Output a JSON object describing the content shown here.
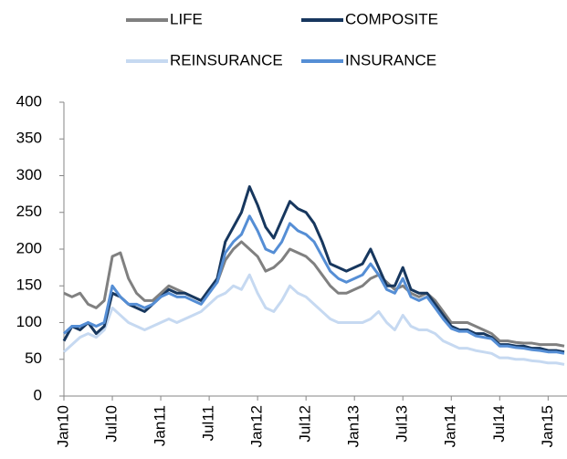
{
  "chart_data": {
    "type": "line",
    "x": [
      "Jan10",
      null,
      null,
      null,
      null,
      null,
      "Jul10",
      null,
      null,
      null,
      null,
      null,
      "Jan11",
      null,
      null,
      null,
      null,
      null,
      "Jul11",
      null,
      null,
      null,
      null,
      null,
      "Jan12",
      null,
      null,
      null,
      null,
      null,
      "Jul12",
      null,
      null,
      null,
      null,
      null,
      "Jan13",
      null,
      null,
      null,
      null,
      null,
      "Jul13",
      null,
      null,
      null,
      null,
      null,
      "Jan14",
      null,
      null,
      null,
      null,
      null,
      "Jul14",
      null,
      null,
      null,
      null,
      null,
      "Jan15",
      null,
      null
    ],
    "series": [
      {
        "name": "LIFE",
        "color": "#808080",
        "values": [
          140,
          135,
          140,
          125,
          120,
          130,
          190,
          195,
          160,
          140,
          130,
          130,
          140,
          150,
          145,
          140,
          135,
          130,
          145,
          155,
          185,
          200,
          210,
          200,
          190,
          170,
          175,
          185,
          200,
          195,
          190,
          180,
          165,
          150,
          140,
          140,
          145,
          150,
          160,
          165,
          155,
          145,
          150,
          140,
          135,
          140,
          130,
          115,
          100,
          100,
          100,
          95,
          90,
          85,
          75,
          75,
          73,
          72,
          72,
          70,
          70,
          70,
          68
        ]
      },
      {
        "name": "COMPOSITE",
        "color": "#17375e",
        "values": [
          75,
          95,
          90,
          100,
          85,
          95,
          140,
          135,
          125,
          120,
          115,
          125,
          135,
          145,
          140,
          140,
          135,
          130,
          145,
          160,
          210,
          230,
          250,
          285,
          260,
          230,
          215,
          240,
          265,
          255,
          250,
          235,
          210,
          180,
          175,
          170,
          175,
          180,
          200,
          175,
          150,
          150,
          175,
          145,
          140,
          140,
          125,
          110,
          95,
          90,
          90,
          85,
          85,
          80,
          70,
          70,
          68,
          68,
          65,
          65,
          62,
          62,
          60
        ]
      },
      {
        "name": "REINSURANCE",
        "color": "#c6d9f1",
        "values": [
          60,
          70,
          80,
          85,
          80,
          90,
          120,
          110,
          100,
          95,
          90,
          95,
          100,
          105,
          100,
          105,
          110,
          115,
          125,
          135,
          140,
          150,
          145,
          165,
          140,
          120,
          115,
          130,
          150,
          140,
          135,
          125,
          115,
          105,
          100,
          100,
          100,
          100,
          105,
          115,
          100,
          90,
          110,
          95,
          90,
          90,
          85,
          75,
          70,
          65,
          65,
          62,
          60,
          58,
          52,
          52,
          50,
          50,
          48,
          47,
          45,
          45,
          43
        ]
      },
      {
        "name": "INSURANCE",
        "color": "#558ed5",
        "values": [
          85,
          95,
          95,
          100,
          95,
          100,
          150,
          135,
          125,
          125,
          120,
          125,
          135,
          140,
          135,
          135,
          130,
          125,
          140,
          155,
          195,
          210,
          220,
          245,
          225,
          200,
          195,
          210,
          235,
          225,
          220,
          210,
          190,
          170,
          160,
          155,
          160,
          165,
          180,
          165,
          145,
          140,
          160,
          135,
          130,
          135,
          120,
          105,
          92,
          88,
          88,
          82,
          80,
          78,
          68,
          68,
          66,
          65,
          63,
          62,
          60,
          60,
          58
        ]
      }
    ],
    "ylim": [
      0,
      400
    ],
    "yticks": [
      0,
      50,
      100,
      150,
      200,
      250,
      300,
      350,
      400
    ]
  }
}
